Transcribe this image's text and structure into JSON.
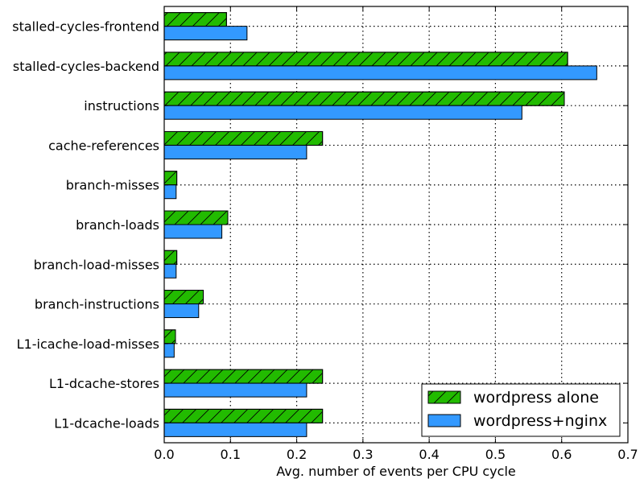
{
  "chart_data": {
    "type": "bar",
    "orientation": "horizontal",
    "title": "",
    "xlabel": "Avg. number of events per CPU cycle",
    "ylabel": "",
    "xlim": [
      0,
      0.7
    ],
    "xticks": [
      "0.0",
      "0.1",
      "0.2",
      "0.3",
      "0.4",
      "0.5",
      "0.6",
      "0.7"
    ],
    "grid": true,
    "legend_position": "lower-right",
    "categories": [
      "L1-dcache-loads",
      "L1-dcache-stores",
      "L1-icache-load-misses",
      "branch-instructions",
      "branch-load-misses",
      "branch-loads",
      "branch-misses",
      "cache-references",
      "instructions",
      "stalled-cycles-backend",
      "stalled-cycles-frontend"
    ],
    "series": [
      {
        "name": "wordpress alone",
        "color": "#22bb00",
        "hatch": "diagonal",
        "values": [
          0.239,
          0.239,
          0.017,
          0.059,
          0.019,
          0.096,
          0.019,
          0.239,
          0.604,
          0.609,
          0.094
        ]
      },
      {
        "name": "wordpress+nginx",
        "color": "#3399ff",
        "hatch": "none",
        "values": [
          0.215,
          0.215,
          0.015,
          0.052,
          0.018,
          0.087,
          0.018,
          0.215,
          0.54,
          0.653,
          0.125
        ]
      }
    ]
  }
}
